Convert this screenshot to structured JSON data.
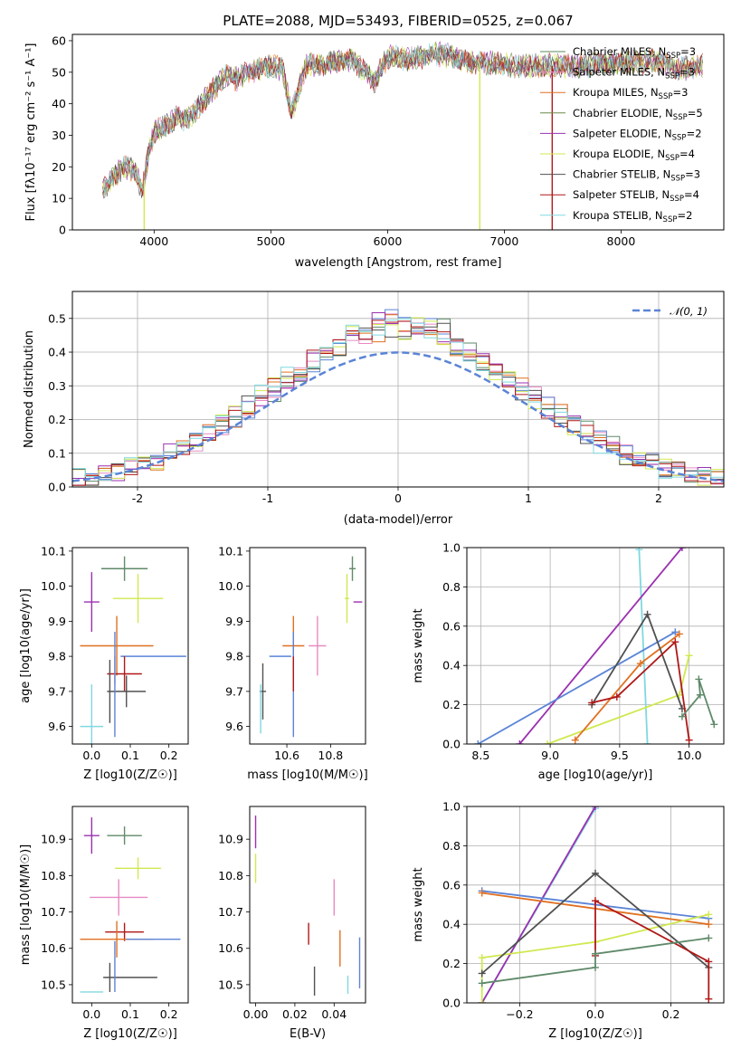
{
  "title": "PLATE=2088, MJD=53493, FIBERID=0525, z=0.067",
  "colors": {
    "Chabrier MILES": "#5a8a5a",
    "Salpeter MILES": "#e78ac3",
    "Kroupa MILES": "#e07020",
    "Chabrier ELODIE": "#6a8a4a",
    "Salpeter ELODIE": "#9b30b0",
    "Kroupa ELODIE": "#d0e850",
    "Chabrier STELIB": "#505050",
    "Salpeter STELIB": "#b01818",
    "Kroupa STELIB": "#80d8e0",
    "blue": "#5b84d6",
    "green": "#5f8a6a"
  },
  "legend_spectrum": [
    {
      "label": "Chabrier MILES, N",
      "sub": "SSP",
      "val": "=3",
      "color": "#5a8a5a"
    },
    {
      "label": "Salpeter MILES, N",
      "sub": "SSP",
      "val": "=3",
      "color": "#e78ac3"
    },
    {
      "label": "Kroupa MILES, N",
      "sub": "SSP",
      "val": "=3",
      "color": "#e07020"
    },
    {
      "label": "Chabrier ELODIE, N",
      "sub": "SSP",
      "val": "=5",
      "color": "#6a8a4a"
    },
    {
      "label": "Salpeter ELODIE, N",
      "sub": "SSP",
      "val": "=2",
      "color": "#9b30b0"
    },
    {
      "label": "Kroupa ELODIE, N",
      "sub": "SSP",
      "val": "=4",
      "color": "#d0e850"
    },
    {
      "label": "Chabrier STELIB, N",
      "sub": "SSP",
      "val": "=3",
      "color": "#505050"
    },
    {
      "label": "Salpeter STELIB, N",
      "sub": "SSP",
      "val": "=4",
      "color": "#b01818"
    },
    {
      "label": "Kroupa STELIB, N",
      "sub": "SSP",
      "val": "=2",
      "color": "#80d8e0"
    }
  ],
  "chart_data": [
    {
      "type": "line",
      "xlabel": "wavelength [Angstrom, rest frame]",
      "ylabel": "Flux [fλ10⁻¹⁷ erg cm⁻² s⁻¹ A⁻¹]",
      "xlim": [
        3300,
        8880
      ],
      "ylim": [
        0,
        62
      ],
      "xticks": [
        4000,
        5000,
        6000,
        7000,
        8000
      ],
      "yticks": [
        0,
        10,
        20,
        30,
        40,
        50,
        60
      ],
      "x": [
        3560,
        3650,
        3750,
        3850,
        3900,
        3950,
        4000,
        4100,
        4200,
        4300,
        4400,
        4500,
        4600,
        4700,
        4800,
        4900,
        5000,
        5100,
        5175,
        5300,
        5500,
        5700,
        5890,
        6000,
        6200,
        6400,
        6563,
        6700,
        6900,
        7100,
        7300,
        7500,
        7700,
        7900,
        8100,
        8300,
        8500,
        8700
      ],
      "y": [
        13,
        17,
        20,
        18,
        12,
        24,
        31,
        33,
        36,
        35,
        40,
        44,
        49,
        48,
        50,
        51,
        52,
        51,
        37,
        52,
        53,
        54,
        47,
        55,
        54,
        56,
        55,
        53,
        53,
        52,
        52,
        52,
        52,
        53,
        53,
        54,
        51,
        52
      ],
      "grid": false
    },
    {
      "type": "bar",
      "xlabel": "(data-model)/error",
      "ylabel": "Normed distribution",
      "xlim": [
        -2.5,
        2.5
      ],
      "ylim": [
        0,
        0.58
      ],
      "xticks": [
        -2,
        -1,
        0,
        1,
        2
      ],
      "yticks": [
        0.0,
        0.1,
        0.2,
        0.3,
        0.4,
        0.5
      ],
      "legend": "𝒩(0, 1)",
      "bins": [
        -2.5,
        -2.4,
        -2.3,
        -2.2,
        -2.1,
        -2.0,
        -1.9,
        -1.8,
        -1.7,
        -1.6,
        -1.5,
        -1.4,
        -1.3,
        -1.2,
        -1.1,
        -1.0,
        -0.9,
        -0.8,
        -0.7,
        -0.6,
        -0.5,
        -0.4,
        -0.3,
        -0.2,
        -0.1,
        0.0,
        0.1,
        0.2,
        0.3,
        0.4,
        0.5,
        0.6,
        0.7,
        0.8,
        0.9,
        1.0,
        1.1,
        1.2,
        1.3,
        1.4,
        1.5,
        1.6,
        1.7,
        1.8,
        1.9,
        2.0,
        2.1,
        2.2,
        2.3,
        2.4,
        2.5
      ],
      "grid": true
    },
    {
      "type": "scatter",
      "xlabel": "Z [log10(Z/Z☉)]",
      "ylabel": "age  [log10(age/yr)]",
      "xlim": [
        -0.05,
        0.25
      ],
      "ylim": [
        9.55,
        10.11
      ],
      "xticks": [
        0.0,
        0.1,
        0.2
      ],
      "yticks": [
        9.6,
        9.7,
        9.8,
        9.9,
        10.0,
        10.1
      ]
    },
    {
      "type": "scatter",
      "xlabel": "mass [log10(M/M☉)]",
      "xlim": [
        10.43,
        10.96
      ],
      "ylim": [
        9.55,
        10.11
      ],
      "xticks": [
        10.6,
        10.8
      ],
      "yticks": [
        9.6,
        9.7,
        9.8,
        9.9,
        10.0,
        10.1
      ]
    },
    {
      "type": "line",
      "xlabel": "age  [log10(age/yr)]",
      "ylabel": "mass weight",
      "xlim": [
        8.4,
        10.25
      ],
      "ylim": [
        0,
        1
      ],
      "xticks": [
        8.5,
        9.0,
        9.5,
        10.0
      ],
      "yticks": [
        0.0,
        0.2,
        0.4,
        0.6,
        0.8,
        1.0
      ],
      "grid": true
    },
    {
      "type": "scatter",
      "xlabel": "Z [log10(Z/Z☉)]",
      "ylabel": "mass [log10(M/M☉)]",
      "xlim": [
        -0.05,
        0.25
      ],
      "ylim": [
        10.45,
        10.99
      ],
      "xticks": [
        0.0,
        0.1,
        0.2
      ],
      "yticks": [
        10.5,
        10.6,
        10.7,
        10.8,
        10.9
      ]
    },
    {
      "type": "scatter",
      "xlabel": "E(B-V)",
      "xlim": [
        -0.003,
        0.056
      ],
      "ylim": [
        10.45,
        10.99
      ],
      "xticks": [
        0.0,
        0.02,
        0.04
      ],
      "yticks": [
        10.5,
        10.6,
        10.7,
        10.8,
        10.9
      ]
    },
    {
      "type": "line",
      "xlabel": "Z [log10(Z/Z☉)]",
      "ylabel": "mass weight",
      "xlim": [
        -0.34,
        0.34
      ],
      "ylim": [
        0,
        1
      ],
      "xticks": [
        -0.2,
        0.0,
        0.2
      ],
      "yticks": [
        0.0,
        0.2,
        0.4,
        0.6,
        0.8,
        1.0
      ],
      "grid": true
    }
  ],
  "points_age_Z": [
    {
      "c": "#5f8a6a",
      "x": 0.085,
      "y": 10.05,
      "xe": 0.06,
      "ye": 0.035
    },
    {
      "c": "#9b30b0",
      "x": 0.0,
      "y": 9.955,
      "xe": 0.02,
      "ye": 0.085
    },
    {
      "c": "#d0e850",
      "x": 0.12,
      "y": 9.965,
      "xe": 0.065,
      "ye": 0.07
    },
    {
      "c": "#e07020",
      "x": 0.065,
      "y": 9.83,
      "xe": 0.095,
      "ye": 0.085
    },
    {
      "c": "#5b84d6",
      "x": 0.16,
      "y": 9.8,
      "xe": 0.085,
      "ye": 0.0
    },
    {
      "c": "#b01818",
      "x": 0.085,
      "y": 9.75,
      "xe": 0.045,
      "ye": 0.05
    },
    {
      "c": "#505050",
      "x": 0.09,
      "y": 9.7,
      "xe": 0.05,
      "ye": 0.045
    },
    {
      "c": "#e78ac3",
      "x": 0.06,
      "y": 9.76,
      "xe": 0.0,
      "ye": 0.04
    },
    {
      "c": "#80d8e0",
      "x": 0.0,
      "y": 9.6,
      "xe": 0.03,
      "ye": 0.12
    },
    {
      "c": "#505050",
      "x": 0.047,
      "y": 9.7,
      "xe": 0.0,
      "ye": 0.09
    },
    {
      "c": "#5b84d6",
      "x": 0.06,
      "y": 9.72,
      "xe": 0.0,
      "ye": 0.15
    }
  ],
  "points_age_mass": [
    {
      "c": "#5f8a6a",
      "x": 10.9,
      "y": 10.05,
      "xe": 0.015,
      "ye": 0.035
    },
    {
      "c": "#9b30b0",
      "x": 10.925,
      "y": 9.955,
      "xe": 0.02,
      "ye": 0.0
    },
    {
      "c": "#d0e850",
      "x": 10.875,
      "y": 9.965,
      "xe": 0.01,
      "ye": 0.07
    },
    {
      "c": "#e78ac3",
      "x": 10.74,
      "y": 9.83,
      "xe": 0.04,
      "ye": 0.085
    },
    {
      "c": "#e07020",
      "x": 10.63,
      "y": 9.83,
      "xe": 0.05,
      "ye": 0.085
    },
    {
      "c": "#5b84d6",
      "x": 10.57,
      "y": 9.8,
      "xe": 0.05,
      "ye": 0.0
    },
    {
      "c": "#5b84d6",
      "x": 10.63,
      "y": 9.72,
      "xe": 0.0,
      "ye": 0.15
    },
    {
      "c": "#b01818",
      "x": 10.63,
      "y": 9.75,
      "xe": 0.0,
      "ye": 0.05
    },
    {
      "c": "#505050",
      "x": 10.49,
      "y": 9.7,
      "xe": 0.015,
      "ye": 0.08
    },
    {
      "c": "#80d8e0",
      "x": 10.48,
      "y": 9.65,
      "xe": 0.0,
      "ye": 0.07
    }
  ],
  "points_mass_Z": [
    {
      "c": "#5f8a6a",
      "x": 0.085,
      "y": 10.91,
      "xe": 0.045,
      "ye": 0.025
    },
    {
      "c": "#9b30b0",
      "x": 0.0,
      "y": 10.91,
      "xe": 0.02,
      "ye": 0.05
    },
    {
      "c": "#d0e850",
      "x": 0.12,
      "y": 10.82,
      "xe": 0.06,
      "ye": 0.03
    },
    {
      "c": "#e78ac3",
      "x": 0.07,
      "y": 10.74,
      "xe": 0.075,
      "ye": 0.05
    },
    {
      "c": "#b01818",
      "x": 0.085,
      "y": 10.645,
      "xe": 0.05,
      "ye": 0.025
    },
    {
      "c": "#e07020",
      "x": 0.065,
      "y": 10.625,
      "xe": 0.095,
      "ye": 0.05
    },
    {
      "c": "#5b84d6",
      "x": 0.16,
      "y": 10.625,
      "xe": 0.07,
      "ye": 0.0
    },
    {
      "c": "#505050",
      "x": 0.1,
      "y": 10.52,
      "xe": 0.07,
      "ye": 0.0
    },
    {
      "c": "#505050",
      "x": 0.047,
      "y": 10.52,
      "xe": 0.0,
      "ye": 0.04
    },
    {
      "c": "#80d8e0",
      "x": 0.0,
      "y": 10.48,
      "xe": 0.03,
      "ye": 0.0
    },
    {
      "c": "#5b84d6",
      "x": 0.06,
      "y": 10.55,
      "xe": 0.0,
      "ye": 0.07
    }
  ],
  "points_mass_ebv": [
    {
      "c": "#9b30b0",
      "x": 0.0,
      "y": 10.92,
      "ye": 0.045
    },
    {
      "c": "#d0e850",
      "x": 0.0,
      "y": 10.82,
      "ye": 0.04
    },
    {
      "c": "#e78ac3",
      "x": 0.04,
      "y": 10.74,
      "ye": 0.05
    },
    {
      "c": "#b01818",
      "x": 0.027,
      "y": 10.64,
      "ye": 0.03
    },
    {
      "c": "#e07020",
      "x": 0.043,
      "y": 10.6,
      "ye": 0.05
    },
    {
      "c": "#505050",
      "x": 0.03,
      "y": 10.51,
      "ye": 0.04
    },
    {
      "c": "#80d8e0",
      "x": 0.047,
      "y": 10.5,
      "ye": 0.025
    },
    {
      "c": "#5b84d6",
      "x": 0.053,
      "y": 10.56,
      "ye": 0.07
    }
  ],
  "lines_age_w": [
    {
      "c": "#80d8e0",
      "pts": [
        [
          9.64,
          0.99
        ],
        [
          9.7,
          0.0
        ]
      ]
    },
    {
      "c": "#9b30b0",
      "pts": [
        [
          8.78,
          0.0
        ],
        [
          9.95,
          1.0
        ]
      ]
    },
    {
      "c": "#5b84d6",
      "pts": [
        [
          8.48,
          0.0
        ],
        [
          9.9,
          0.57
        ]
      ]
    },
    {
      "c": "#d0e850",
      "pts": [
        [
          8.98,
          0.0
        ],
        [
          9.93,
          0.25
        ],
        [
          10.0,
          0.45
        ]
      ]
    },
    {
      "c": "#e07020",
      "pts": [
        [
          9.18,
          0.02
        ],
        [
          9.65,
          0.41
        ],
        [
          9.93,
          0.56
        ]
      ]
    },
    {
      "c": "#505050",
      "pts": [
        [
          9.3,
          0.2
        ],
        [
          9.7,
          0.66
        ],
        [
          9.95,
          0.18
        ]
      ]
    },
    {
      "c": "#b01818",
      "pts": [
        [
          9.3,
          0.21
        ],
        [
          9.48,
          0.24
        ],
        [
          9.9,
          0.52
        ],
        [
          10.0,
          0.02
        ]
      ]
    },
    {
      "c": "#5f8a6a",
      "pts": [
        [
          9.95,
          0.14
        ],
        [
          10.08,
          0.25
        ],
        [
          10.07,
          0.33
        ],
        [
          10.18,
          0.1
        ]
      ]
    }
  ],
  "lines_Z_w": [
    {
      "c": "#80d8e0",
      "pts": [
        [
          -0.3,
          0.0
        ],
        [
          0.0,
          0.99
        ]
      ]
    },
    {
      "c": "#9b30b0",
      "pts": [
        [
          -0.3,
          0.0
        ],
        [
          0.0,
          1.0
        ]
      ]
    },
    {
      "c": "#5b84d6",
      "pts": [
        [
          -0.3,
          0.57
        ],
        [
          0.3,
          0.43
        ]
      ]
    },
    {
      "c": "#e07020",
      "pts": [
        [
          -0.3,
          0.56
        ],
        [
          0.3,
          0.4
        ]
      ]
    },
    {
      "c": "#d0e850",
      "pts": [
        [
          -0.3,
          0.0
        ],
        [
          -0.3,
          0.23
        ],
        [
          0.0,
          0.31
        ],
        [
          0.3,
          0.45
        ]
      ]
    },
    {
      "c": "#505050",
      "pts": [
        [
          -0.3,
          0.15
        ],
        [
          0.0,
          0.66
        ],
        [
          0.3,
          0.18
        ]
      ]
    },
    {
      "c": "#b01818",
      "pts": [
        [
          0.0,
          0.24
        ],
        [
          0.0,
          0.52
        ],
        [
          0.3,
          0.21
        ],
        [
          0.3,
          0.02
        ]
      ]
    },
    {
      "c": "#5f8a6a",
      "pts": [
        [
          -0.3,
          0.1
        ],
        [
          0.0,
          0.18
        ],
        [
          0.0,
          0.25
        ],
        [
          0.3,
          0.33
        ]
      ]
    }
  ]
}
